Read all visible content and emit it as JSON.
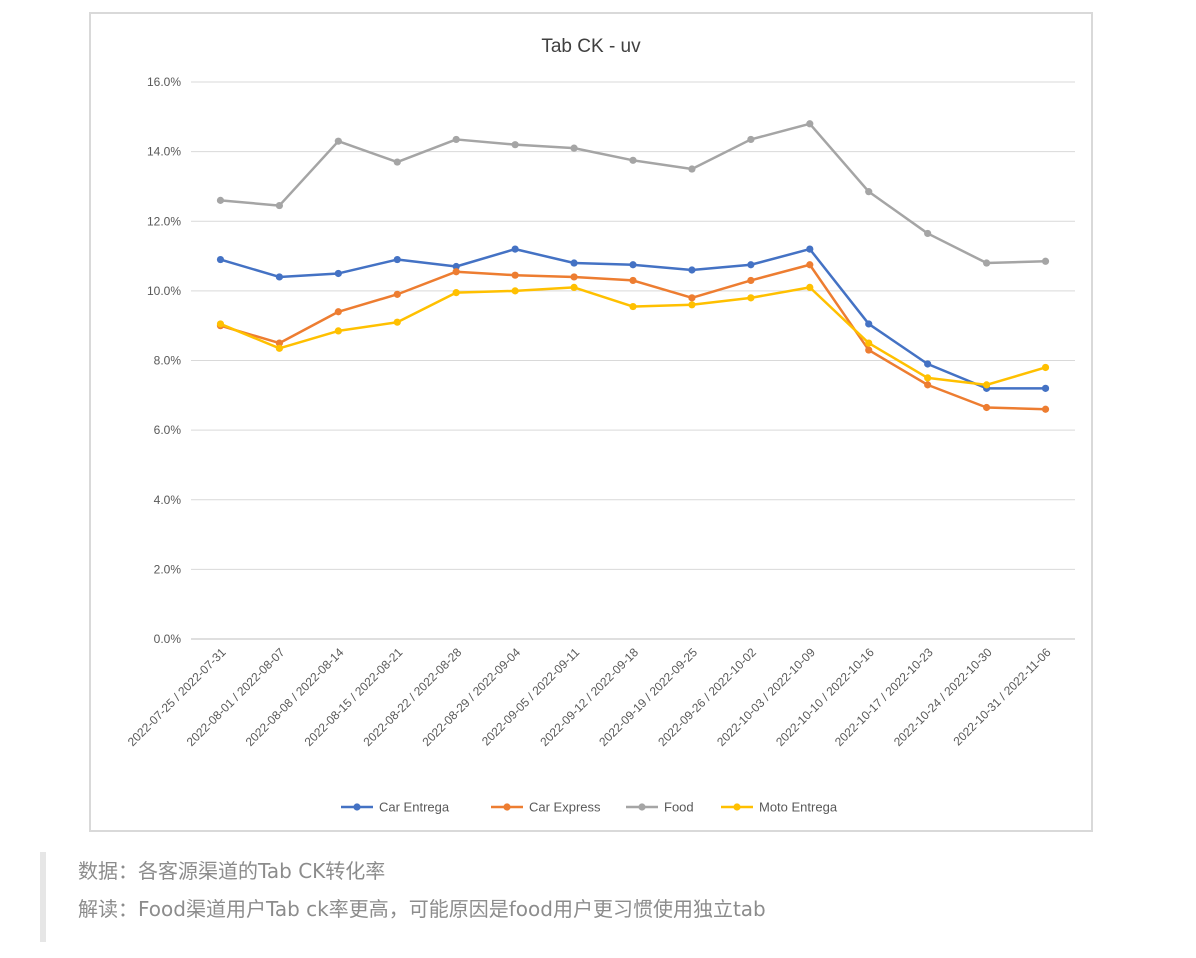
{
  "chart_data": {
    "type": "line",
    "title": "Tab CK - uv",
    "xlabel": "",
    "ylabel": "",
    "ylim": [
      0,
      16
    ],
    "y_ticks": [
      "0.0%",
      "2.0%",
      "4.0%",
      "6.0%",
      "8.0%",
      "10.0%",
      "12.0%",
      "14.0%",
      "16.0%"
    ],
    "grid": true,
    "legend_position": "bottom",
    "categories": [
      "2022-07-25 / 2022-07-31",
      "2022-08-01 / 2022-08-07",
      "2022-08-08 / 2022-08-14",
      "2022-08-15 / 2022-08-21",
      "2022-08-22 / 2022-08-28",
      "2022-08-29 / 2022-09-04",
      "2022-09-05 / 2022-09-11",
      "2022-09-12 / 2022-09-18",
      "2022-09-19 / 2022-09-25",
      "2022-09-26 / 2022-10-02",
      "2022-10-03 / 2022-10-09",
      "2022-10-10 / 2022-10-16",
      "2022-10-17 / 2022-10-23",
      "2022-10-24 / 2022-10-30",
      "2022-10-31 / 2022-11-06"
    ],
    "series": [
      {
        "name": "Car Entrega",
        "color": "#4472c4",
        "values": [
          10.9,
          10.4,
          10.5,
          10.9,
          10.7,
          11.2,
          10.8,
          10.75,
          10.6,
          10.75,
          11.2,
          9.05,
          7.9,
          7.2,
          7.2
        ]
      },
      {
        "name": "Car Express",
        "color": "#ed7d31",
        "values": [
          9.0,
          8.5,
          9.4,
          9.9,
          10.55,
          10.45,
          10.4,
          10.3,
          9.8,
          10.3,
          10.75,
          8.3,
          7.3,
          6.65,
          6.6
        ]
      },
      {
        "name": "Food",
        "color": "#a5a5a5",
        "values": [
          12.6,
          12.45,
          14.3,
          13.7,
          14.35,
          14.2,
          14.1,
          13.75,
          13.5,
          14.35,
          14.8,
          12.85,
          11.65,
          10.8,
          10.85
        ]
      },
      {
        "name": "Moto Entrega",
        "color": "#ffc000",
        "values": [
          9.05,
          8.35,
          8.85,
          9.1,
          9.95,
          10.0,
          10.1,
          9.55,
          9.6,
          9.8,
          10.1,
          8.5,
          7.5,
          7.3,
          7.8
        ]
      }
    ]
  },
  "notes": {
    "source": "数据：各客源渠道的Tab CK转化率",
    "interpretation": "解读：Food渠道用户Tab ck率更高，可能原因是food用户更习惯使用独立tab"
  }
}
